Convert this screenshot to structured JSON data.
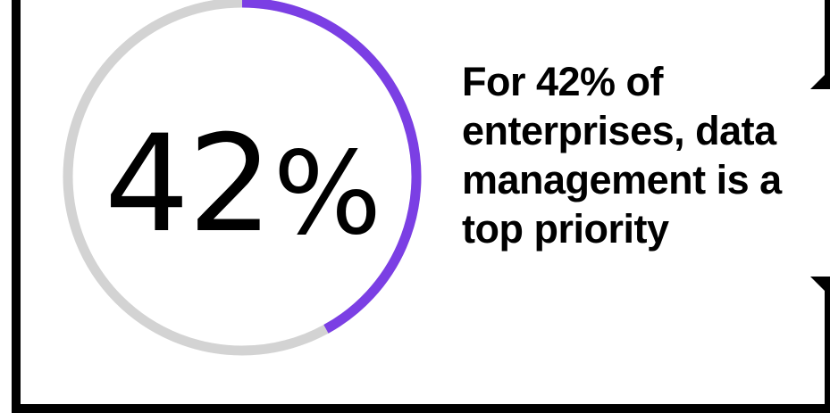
{
  "chart_data": {
    "type": "pie",
    "variant": "donut-progress",
    "value": 42,
    "max": 100,
    "value_label": "42",
    "unit_label": "%",
    "colors": {
      "filled": "#7b3fe4",
      "track": "#d3d3d3"
    }
  },
  "headline": "For 42% of enterprises, data management is a top priority",
  "colors": {
    "frame": "#000000",
    "text": "#000000",
    "background": "#ffffff"
  }
}
